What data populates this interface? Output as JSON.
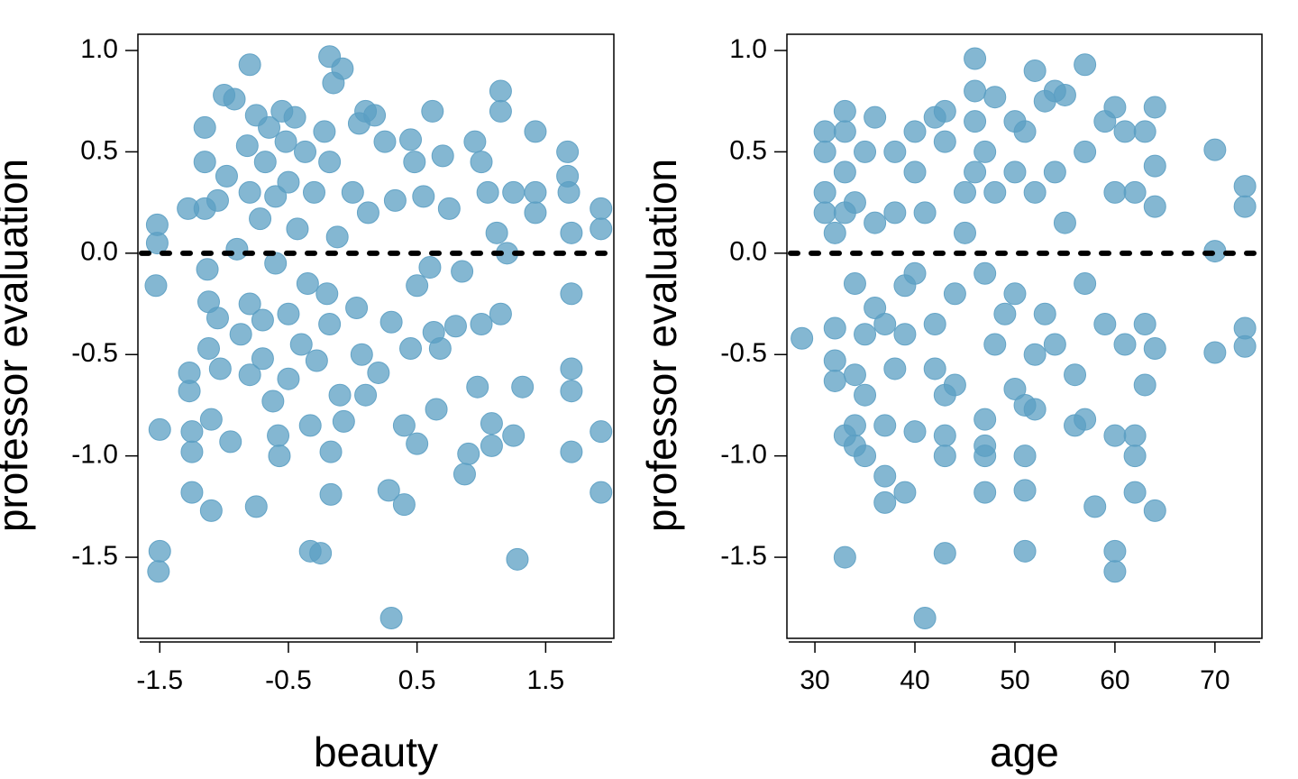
{
  "chart_data": [
    {
      "type": "scatter",
      "xlabel": "beauty",
      "ylabel": "professor evaluation",
      "color": "#5b9fc3",
      "hline": 0,
      "xlim": [
        -1.67,
        2.03
      ],
      "ylim": [
        -1.9,
        1.08
      ],
      "xticks": [
        -1.5,
        -0.5,
        0.5,
        1.5
      ],
      "yticks": [
        {
          "value": -1.5,
          "label": "-1.5"
        },
        {
          "value": -1,
          "label": "-1.0"
        },
        {
          "value": -0.5,
          "label": "-0.5"
        },
        {
          "value": 0,
          "label": "0.0"
        },
        {
          "value": 0.5,
          "label": "0.5"
        },
        {
          "value": 1,
          "label": "1.0"
        }
      ],
      "x": [
        -1.52,
        -1.52,
        -1.53,
        -1.5,
        -1.5,
        -1.51,
        -1.28,
        -1.27,
        -1.27,
        -1.25,
        -1.25,
        -1.25,
        -1.15,
        -1.15,
        -1.15,
        -1.13,
        -1.12,
        -1.12,
        -1.1,
        -1.1,
        -1.05,
        -1.05,
        -1.03,
        -1.0,
        -0.98,
        -0.95,
        -0.92,
        -0.9,
        -0.87,
        -0.82,
        -0.8,
        -0.8,
        -0.8,
        -0.8,
        -0.75,
        -0.75,
        -0.72,
        -0.7,
        -0.7,
        -0.68,
        -0.65,
        -0.62,
        -0.6,
        -0.6,
        -0.58,
        -0.57,
        -0.55,
        -0.52,
        -0.5,
        -0.5,
        -0.5,
        -0.45,
        -0.43,
        -0.4,
        -0.37,
        -0.35,
        -0.33,
        -0.33,
        -0.3,
        -0.28,
        -0.25,
        -0.22,
        -0.2,
        -0.18,
        -0.18,
        -0.18,
        -0.17,
        -0.17,
        -0.15,
        -0.12,
        -0.1,
        -0.08,
        -0.07,
        0.0,
        0.03,
        0.05,
        0.07,
        0.1,
        0.12,
        0.1,
        0.17,
        0.2,
        0.25,
        0.28,
        0.3,
        0.3,
        0.33,
        0.4,
        0.4,
        0.45,
        0.45,
        0.48,
        0.5,
        0.5,
        0.55,
        0.6,
        0.62,
        0.63,
        0.65,
        0.68,
        0.7,
        0.75,
        0.8,
        0.85,
        0.87,
        0.9,
        0.95,
        0.97,
        1.0,
        1.0,
        1.05,
        1.08,
        1.08,
        1.12,
        1.15,
        1.15,
        1.15,
        1.2,
        1.25,
        1.25,
        1.28,
        1.32,
        1.42,
        1.42,
        1.42,
        1.67,
        1.67,
        1.68,
        1.7,
        1.7,
        1.7,
        1.7,
        1.7,
        1.93,
        1.93,
        1.93,
        1.93
      ],
      "y": [
        0.14,
        0.05,
        -0.16,
        -0.87,
        -1.47,
        -1.57,
        0.22,
        -0.59,
        -0.68,
        -0.88,
        -0.98,
        -1.18,
        0.62,
        0.45,
        0.22,
        -0.08,
        -0.24,
        -0.47,
        -0.82,
        -1.27,
        0.26,
        -0.32,
        -0.57,
        0.78,
        0.38,
        -0.93,
        0.76,
        0.02,
        -0.4,
        0.53,
        0.93,
        0.3,
        -0.25,
        -0.6,
        -1.25,
        0.68,
        0.17,
        -0.52,
        -0.33,
        0.45,
        0.62,
        -0.73,
        0.28,
        -0.05,
        -0.9,
        -1.0,
        0.7,
        0.55,
        0.35,
        -0.3,
        -0.62,
        0.67,
        0.12,
        -0.45,
        0.5,
        -0.15,
        -1.47,
        -0.85,
        0.3,
        -0.53,
        -1.48,
        0.6,
        -0.2,
        0.97,
        0.45,
        -0.35,
        -0.98,
        -1.19,
        0.84,
        0.08,
        -0.7,
        0.91,
        -0.83,
        0.3,
        -0.27,
        0.64,
        -0.5,
        0.7,
        0.2,
        -0.7,
        0.68,
        -0.59,
        0.55,
        -1.17,
        -0.34,
        -1.8,
        0.26,
        -0.85,
        -1.24,
        0.56,
        -0.47,
        0.45,
        -0.16,
        -0.94,
        0.28,
        -0.07,
        0.7,
        -0.39,
        -0.77,
        -0.47,
        0.48,
        0.22,
        -0.36,
        -0.09,
        -1.09,
        -0.99,
        0.55,
        -0.66,
        0.45,
        -0.35,
        0.3,
        -0.84,
        -0.95,
        0.1,
        0.8,
        0.7,
        -0.3,
        0.0,
        0.3,
        -0.9,
        -1.51,
        -0.66,
        0.6,
        0.3,
        0.2,
        0.5,
        0.38,
        0.3,
        0.1,
        -0.2,
        -0.57,
        -0.68,
        -0.98,
        0.22,
        0.12,
        -0.88,
        -1.18
      ]
    },
    {
      "type": "scatter",
      "xlabel": "age",
      "ylabel": "professor evaluation",
      "color": "#5b9fc3",
      "hline": 0,
      "xlim": [
        27.2,
        74.7
      ],
      "ylim": [
        -1.9,
        1.08
      ],
      "xticks": [
        30,
        40,
        50,
        60,
        70
      ],
      "yticks": [
        {
          "value": -1.5,
          "label": "-1.5"
        },
        {
          "value": -1,
          "label": "-1.0"
        },
        {
          "value": -0.5,
          "label": "-0.5"
        },
        {
          "value": 0,
          "label": "0.0"
        },
        {
          "value": 0.5,
          "label": "0.5"
        },
        {
          "value": 1,
          "label": "1.0"
        }
      ],
      "x": [
        28.7,
        31,
        31,
        31,
        31,
        32,
        32,
        32,
        32,
        33,
        33,
        33,
        33,
        33,
        33,
        34,
        34,
        34,
        34,
        34,
        35,
        35,
        35,
        35,
        36,
        36,
        36,
        37,
        37,
        37,
        37,
        38,
        38,
        38,
        39,
        39,
        39,
        40,
        40,
        40,
        40,
        41,
        41,
        42,
        42,
        42,
        43,
        43,
        43,
        43,
        43,
        43,
        44,
        44,
        45,
        45,
        46,
        46,
        46,
        46,
        47,
        47,
        47,
        47,
        47,
        47,
        48,
        48,
        48,
        49,
        50,
        50,
        50,
        50,
        51,
        51,
        51,
        51,
        51,
        52,
        52,
        52,
        52,
        53,
        53,
        54,
        54,
        54,
        55,
        55,
        56,
        56,
        57,
        57,
        57,
        57,
        58,
        59,
        59,
        60,
        60,
        60,
        60,
        60,
        61,
        61,
        62,
        62,
        62,
        62,
        63,
        63,
        63,
        64,
        64,
        64,
        64,
        64,
        70,
        70,
        70,
        73,
        73,
        73,
        73
      ],
      "y": [
        -0.42,
        0.6,
        0.5,
        0.3,
        0.2,
        0.1,
        -0.37,
        -0.53,
        -0.63,
        0.7,
        0.6,
        0.4,
        0.2,
        -0.9,
        -1.5,
        0.25,
        -0.15,
        -0.6,
        -0.85,
        -0.95,
        0.5,
        -0.4,
        -0.7,
        -1.0,
        0.67,
        0.15,
        -0.27,
        -0.85,
        -1.1,
        -1.23,
        -0.35,
        0.5,
        0.2,
        -0.57,
        -0.16,
        -0.4,
        -1.18,
        0.6,
        0.4,
        -0.1,
        -0.88,
        -1.8,
        0.2,
        0.67,
        -0.35,
        -0.57,
        0.7,
        0.55,
        -0.7,
        -0.9,
        -1.0,
        -1.48,
        -0.65,
        -0.2,
        0.3,
        0.1,
        0.96,
        0.8,
        0.65,
        0.4,
        0.5,
        -0.1,
        -0.82,
        -0.95,
        -1.0,
        -1.18,
        0.77,
        0.3,
        -0.45,
        -0.3,
        0.65,
        0.4,
        -0.2,
        -0.67,
        0.6,
        -0.75,
        -1.0,
        -1.17,
        -1.47,
        0.9,
        0.3,
        -0.5,
        -0.77,
        0.75,
        -0.3,
        0.8,
        0.4,
        -0.45,
        0.78,
        0.15,
        -0.6,
        -0.85,
        0.93,
        0.5,
        -0.15,
        -0.82,
        -1.25,
        0.65,
        -0.35,
        0.72,
        0.3,
        -0.9,
        -1.47,
        -1.57,
        0.6,
        -0.45,
        0.3,
        -0.9,
        -1.0,
        -1.18,
        0.6,
        -0.35,
        -0.65,
        0.72,
        0.43,
        0.23,
        -0.47,
        -1.27,
        0.51,
        0.01,
        -0.49,
        0.33,
        0.23,
        -0.37,
        -0.46
      ]
    }
  ]
}
